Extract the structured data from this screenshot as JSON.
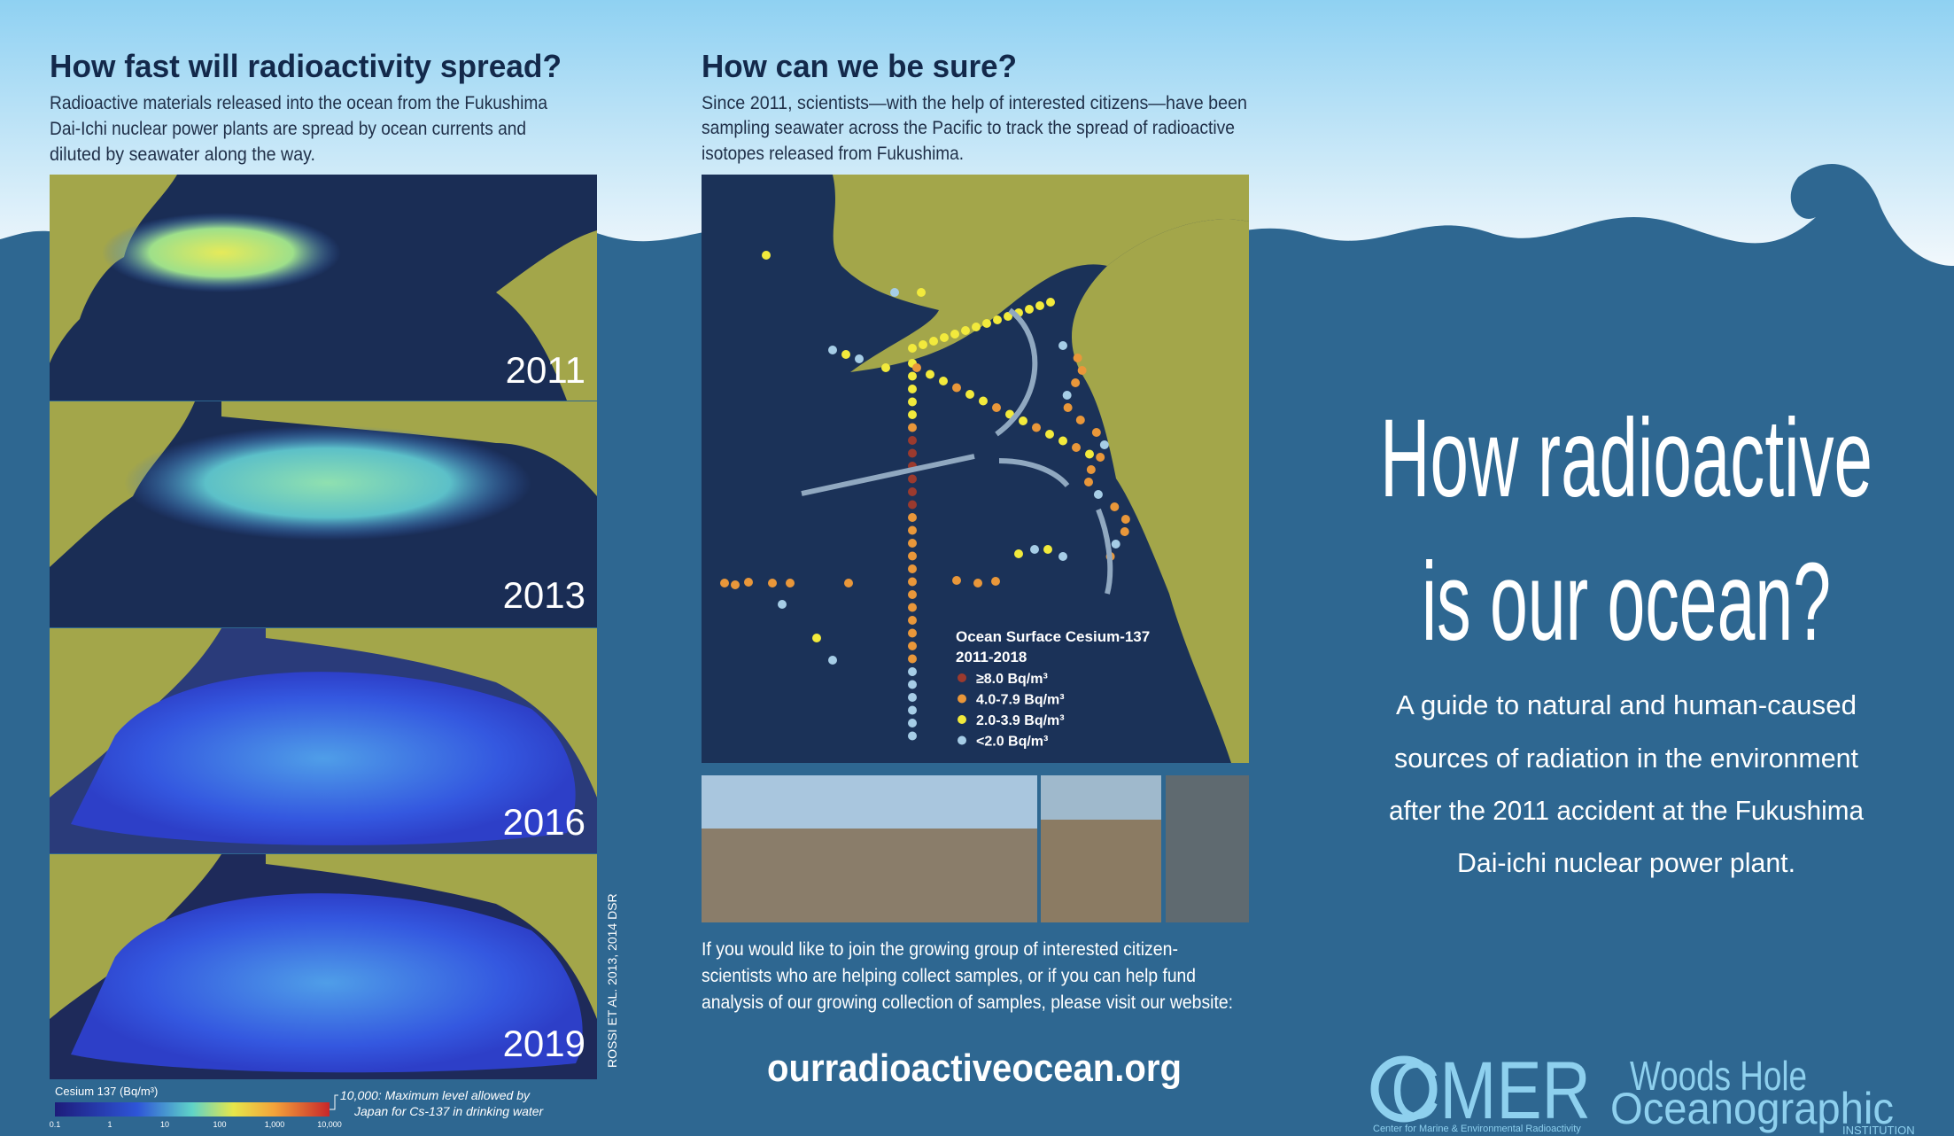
{
  "left": {
    "title": "How fast will radioactivity spread?",
    "body": [
      "Radioactive materials released into the ocean from the Fukushima",
      "Dai-Ichi nuclear power plants are spread by ocean currents and",
      "diluted by seawater along the way."
    ],
    "years": [
      "2011",
      "2013",
      "2016",
      "2019"
    ],
    "credit": "ROSSI ET AL. 2013, 2014 DSR",
    "colorbar": {
      "title": "Cesium 137 (Bq/m³)",
      "ticks": [
        "0.1",
        "1",
        "10",
        "100",
        "1,000",
        "10,000"
      ],
      "note": [
        "10,000: Maximum level allowed by",
        "Japan for Cs-137 in drinking water"
      ]
    }
  },
  "middle": {
    "title": "How can we be sure?",
    "body": [
      "Since 2011, scientists—with the help of interested citizens—have been",
      "sampling seawater across the Pacific to track the spread of radioactive",
      "isotopes released from Fukushima."
    ],
    "legend": {
      "title": "Ocean Surface Cesium-137",
      "years": "2011-2018",
      "items": [
        "≥8.0 Bq/m³",
        "4.0-7.9 Bq/m³",
        "2.0-3.9 Bq/m³",
        "<2.0 Bq/m³"
      ]
    },
    "footer": [
      "If you would like to join the growing group of interested citizen-",
      "scientists who are helping collect samples, or if you can help fund",
      "analysis of our growing collection of samples, please visit our website:"
    ],
    "url": "ourradioactiveocean.org"
  },
  "right": {
    "title": [
      "How radioactive",
      "is our ocean?"
    ],
    "subtitle": [
      "A guide to natural and human-caused",
      "sources of radiation in the environment",
      "after the 2011 accident at the Fukushima",
      "Dai-ichi nuclear power plant."
    ],
    "logo_cmer": "CMER",
    "logo_cmer_sub": "Center for Marine & Environmental Radioactivity",
    "logo_whoi": [
      "Woods Hole",
      "Oceanographic",
      "INSTITUTION"
    ]
  }
}
